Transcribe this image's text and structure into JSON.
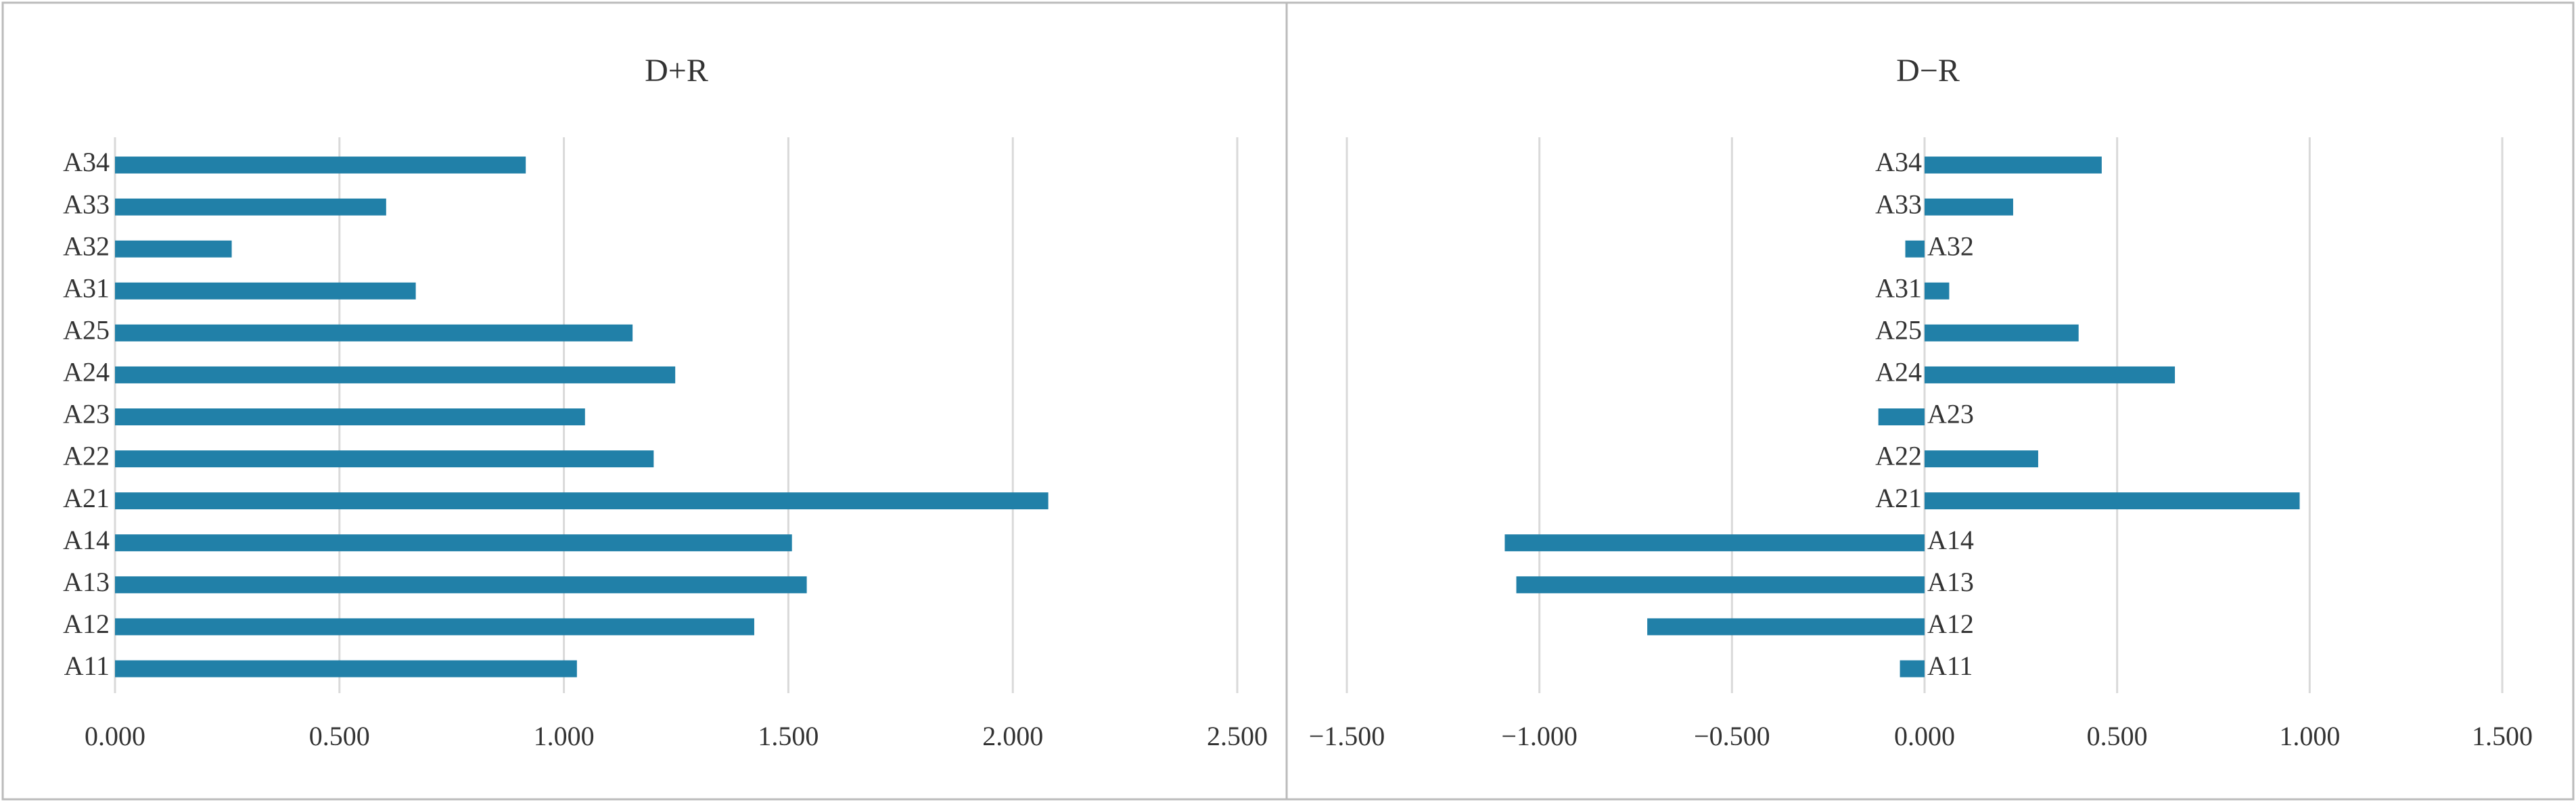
{
  "chart_data": [
    {
      "type": "bar",
      "orientation": "horizontal",
      "title": "D+R",
      "categories": [
        "A11",
        "A12",
        "A13",
        "A14",
        "A21",
        "A22",
        "A23",
        "A24",
        "A25",
        "A31",
        "A32",
        "A33",
        "A34"
      ],
      "values": [
        1.029,
        1.424,
        1.541,
        1.508,
        2.079,
        1.2,
        1.047,
        1.248,
        1.153,
        0.67,
        0.26,
        0.604,
        0.915
      ],
      "color": "#2180a8",
      "xlim": [
        0,
        2.5
      ],
      "xticks": [
        {
          "value": 0,
          "label": "0.000"
        },
        {
          "value": 0.5,
          "label": "0.500"
        },
        {
          "value": 1,
          "label": "1.000"
        },
        {
          "value": 1.5,
          "label": "1.500"
        },
        {
          "value": 2,
          "label": "2.000"
        },
        {
          "value": 2.5,
          "label": "2.500"
        }
      ],
      "grid": true
    },
    {
      "type": "bar",
      "orientation": "horizontal",
      "title": "D−R",
      "categories": [
        "A11",
        "A12",
        "A13",
        "A14",
        "A21",
        "A22",
        "A23",
        "A24",
        "A25",
        "A31",
        "A32",
        "A33",
        "A34"
      ],
      "values": [
        -0.064,
        -0.72,
        -1.06,
        -1.09,
        0.974,
        0.295,
        -0.12,
        0.65,
        0.4,
        0.064,
        -0.05,
        0.23,
        0.46
      ],
      "color": "#2180a8",
      "xlim": [
        -1.5,
        1.5
      ],
      "xticks": [
        {
          "value": -1.5,
          "label": "−1.500"
        },
        {
          "value": -1,
          "label": "−1.000"
        },
        {
          "value": -0.5,
          "label": "−0.500"
        },
        {
          "value": 0,
          "label": "0.000"
        },
        {
          "value": 0.5,
          "label": "0.500"
        },
        {
          "value": 1,
          "label": "1.000"
        },
        {
          "value": 1.5,
          "label": "1.500"
        }
      ],
      "grid": true
    }
  ]
}
